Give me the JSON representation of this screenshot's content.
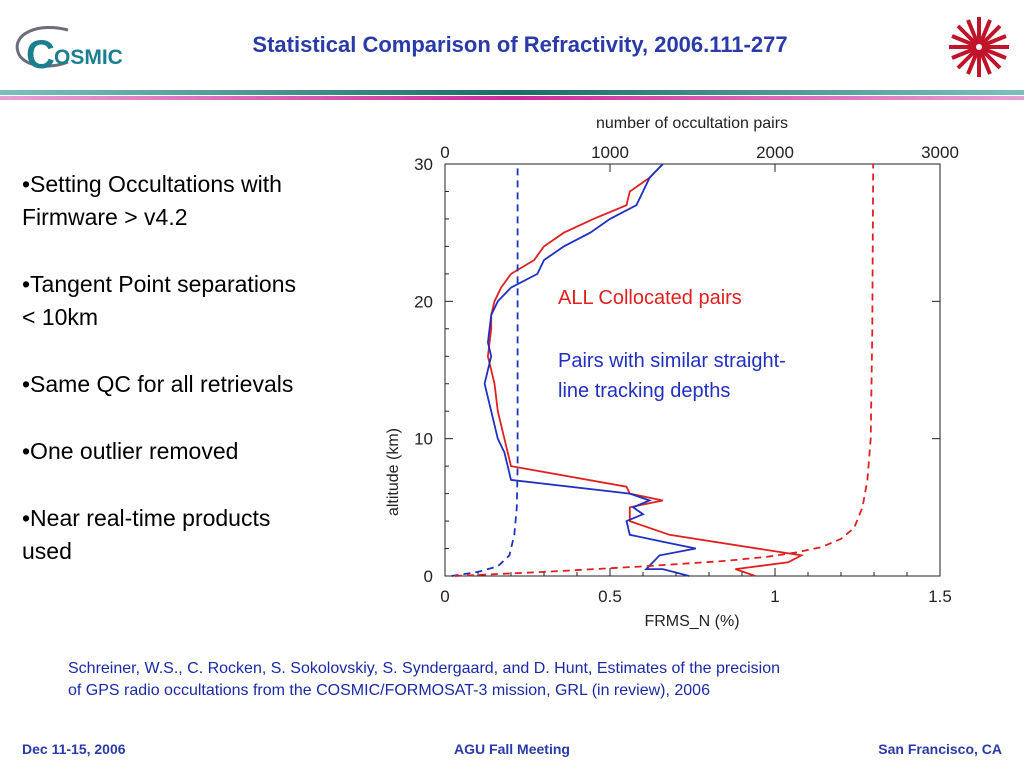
{
  "header": {
    "title": "Statistical Comparison of Refractivity, 2006.111-277",
    "logo_text": "OSMIC",
    "logo_letter": "C"
  },
  "bullets": [
    "•Setting Occultations with Firmware > v4.2",
    "•Tangent Point separations < 10km",
    "•Same QC for all retrievals",
    "•One outlier removed",
    "•Near real-time products used"
  ],
  "colors": {
    "title": "#2a3aa8",
    "red_series": "#e02020",
    "blue_series": "#2030c0",
    "citation": "#1a2aa6",
    "rule_teal": "#1b6b6b",
    "rule_magenta": "#cc2a9a"
  },
  "chart_data": {
    "type": "line",
    "xlabel": "FRMS_N (%)",
    "ylabel": "altitude (km)",
    "top_xlabel": "number of occultation pairs",
    "xlim": [
      0,
      1.5
    ],
    "ylim": [
      0,
      30
    ],
    "top_xlim": [
      0,
      3000
    ],
    "x_ticks": [
      "0",
      "0.5",
      "1",
      "1.5"
    ],
    "y_ticks": [
      "0",
      "10",
      "20",
      "30"
    ],
    "top_x_ticks": [
      "0",
      "1000",
      "2000",
      "3000"
    ],
    "annotations": {
      "red": "ALL Collocated pairs",
      "blue_line1": "Pairs with similar straight-",
      "blue_line2": "line tracking depths"
    },
    "series": [
      {
        "color": "red",
        "style": "solid",
        "axis": "bottom",
        "x": [
          0.94,
          0.88,
          1.04,
          1.08,
          0.68,
          0.56,
          0.56,
          0.66,
          0.56,
          0.55,
          0.2,
          0.18,
          0.16,
          0.15,
          0.13,
          0.14,
          0.14,
          0.15,
          0.17,
          0.2,
          0.27,
          0.3,
          0.36,
          0.45,
          0.55,
          0.56,
          0.62,
          0.66
        ],
        "y": [
          0,
          0.5,
          1,
          1.5,
          3,
          4,
          5,
          5.5,
          6,
          6.5,
          8,
          10,
          12,
          14,
          16,
          18,
          19,
          20,
          21,
          22,
          23,
          24,
          25,
          26,
          27,
          28,
          29,
          30
        ]
      },
      {
        "color": "blue",
        "style": "solid",
        "axis": "bottom",
        "x": [
          0.74,
          0.66,
          0.61,
          0.65,
          0.76,
          0.66,
          0.56,
          0.55,
          0.6,
          0.57,
          0.62,
          0.56,
          0.2,
          0.18,
          0.16,
          0.14,
          0.12,
          0.13,
          0.14,
          0.13,
          0.14,
          0.16,
          0.2,
          0.28,
          0.3,
          0.36,
          0.44,
          0.5,
          0.58,
          0.62,
          0.66
        ],
        "y": [
          0,
          0.5,
          0.5,
          1.5,
          2,
          2.5,
          3,
          4,
          4.5,
          5,
          5.5,
          6,
          7,
          9,
          10,
          12,
          14,
          15,
          16,
          17,
          19,
          20,
          21,
          22,
          23,
          24,
          25,
          26,
          27,
          29,
          30
        ]
      },
      {
        "color": "blue",
        "style": "dashed",
        "axis": "top",
        "x": [
          40,
          200,
          320,
          390,
          420,
          435,
          440,
          440,
          440
        ],
        "y": [
          0,
          0.3,
          0.7,
          1.5,
          3,
          5,
          8,
          15,
          30
        ]
      },
      {
        "color": "red",
        "style": "dashed",
        "axis": "top",
        "x": [
          60,
          600,
          1200,
          1700,
          1950,
          2120,
          2280,
          2400,
          2480,
          2530,
          2560,
          2580,
          2590,
          2595
        ],
        "y": [
          0,
          0.3,
          0.7,
          1.1,
          1.4,
          1.7,
          2.1,
          2.7,
          3.5,
          5,
          7,
          10,
          18,
          30
        ]
      }
    ]
  },
  "citation": {
    "line1": "Schreiner, W.S., C. Rocken, S. Sokolovskiy, S. Syndergaard, and D. Hunt, Estimates of the precision",
    "line2": "of GPS radio occultations from the COSMIC/FORMOSAT-3 mission, GRL (in review), 2006"
  },
  "footer": {
    "date": "Dec 11-15, 2006",
    "event": "AGU Fall Meeting",
    "location": "San Francisco, CA"
  }
}
